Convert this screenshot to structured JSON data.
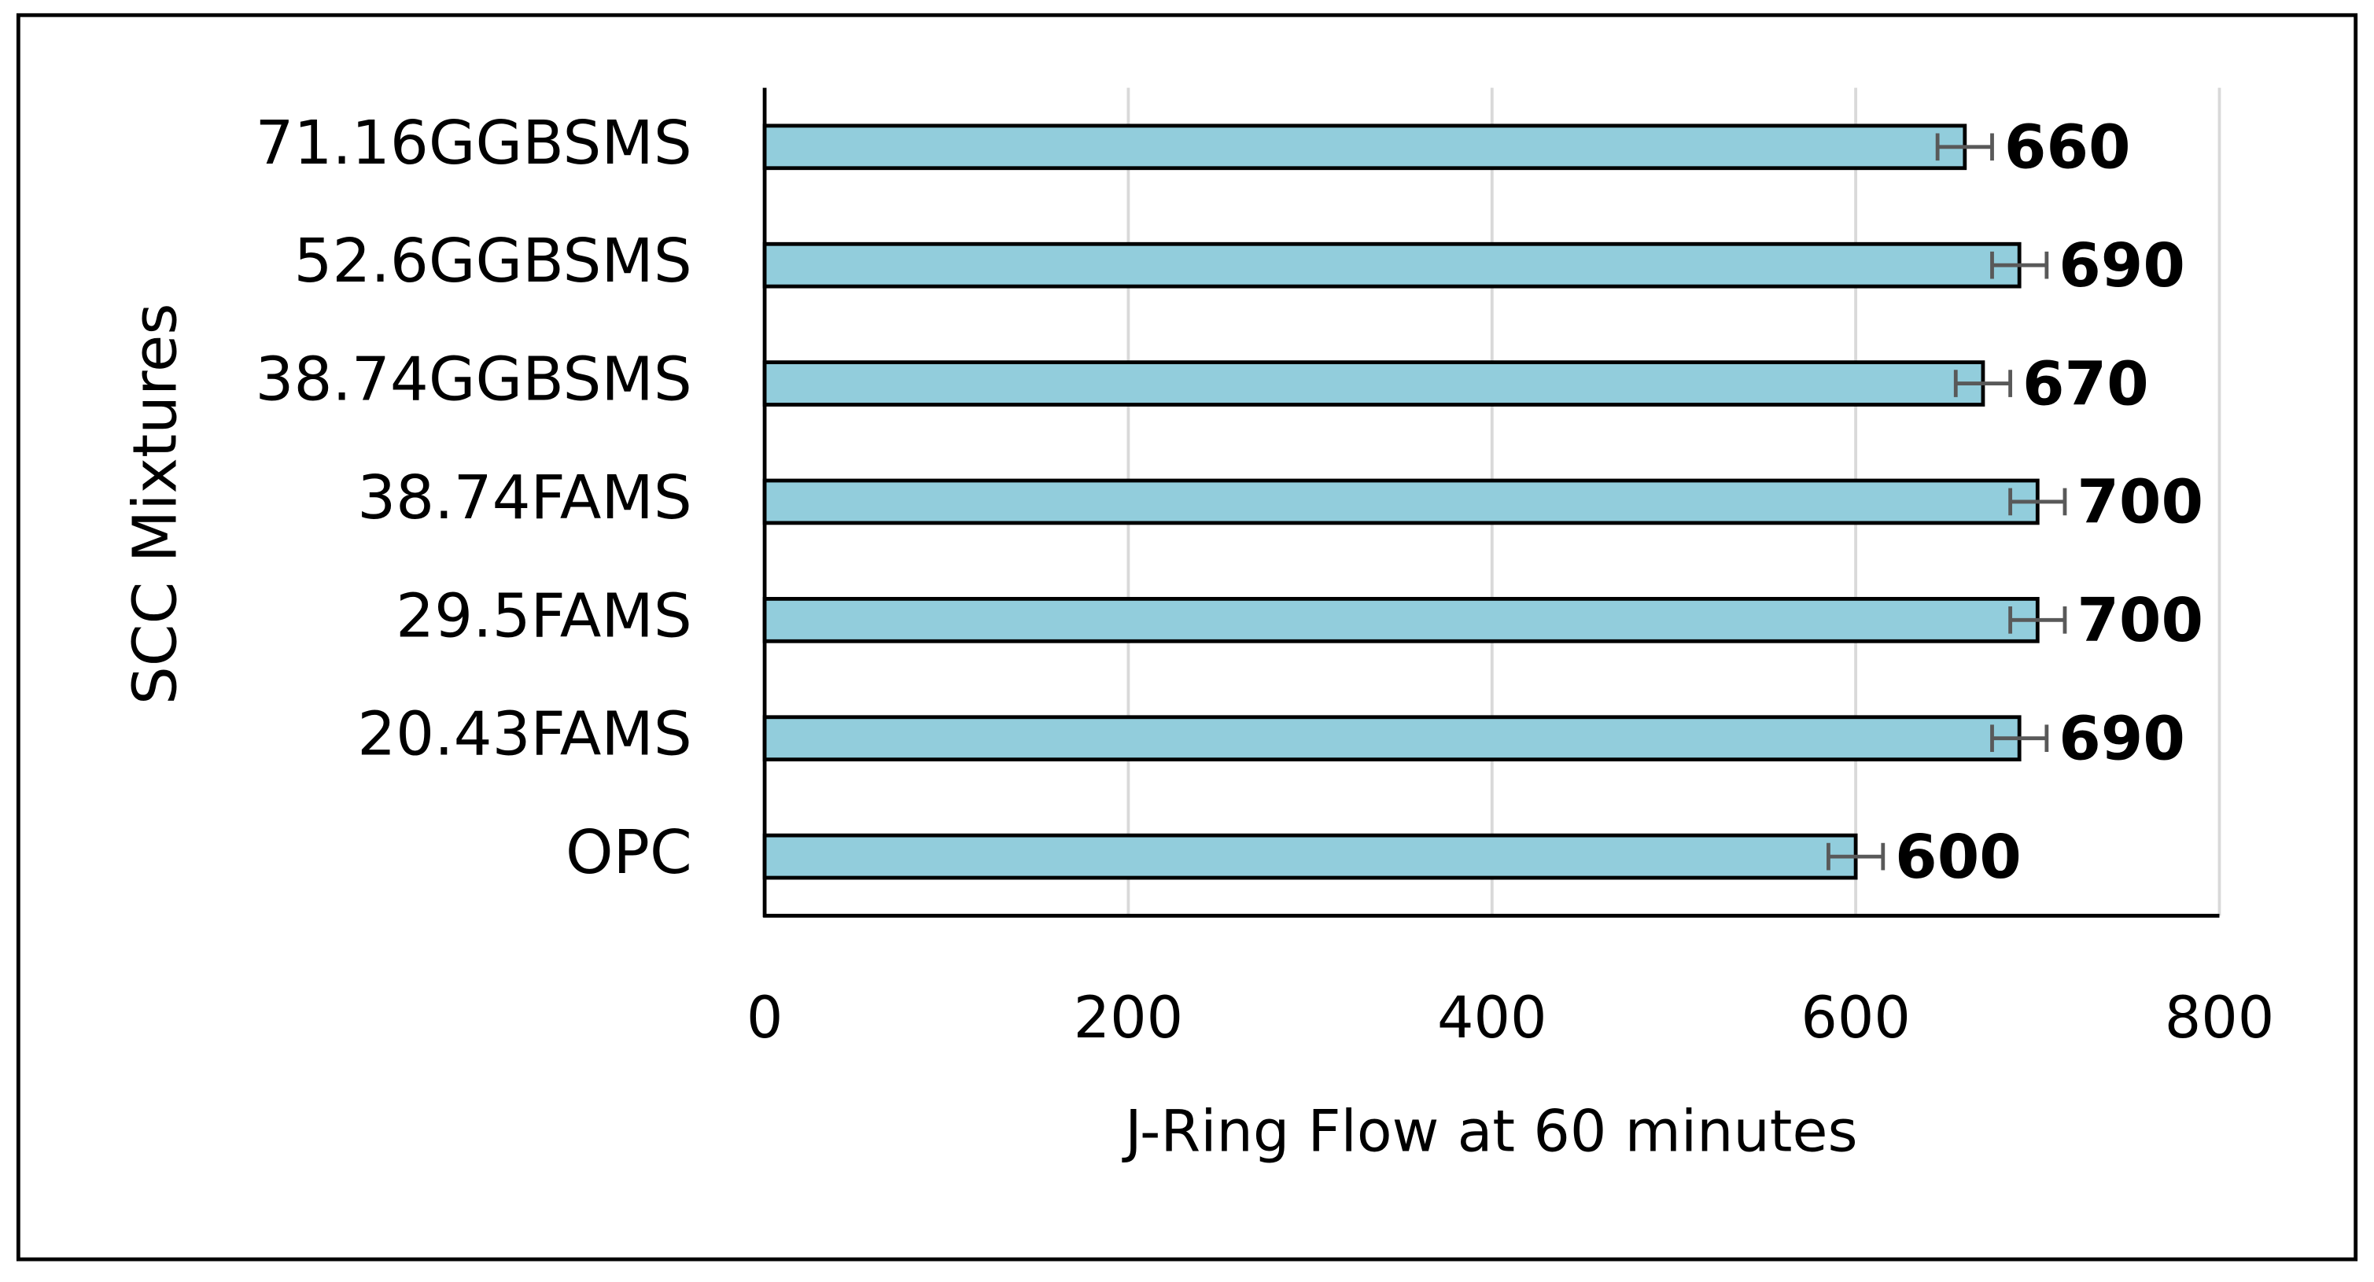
{
  "chart_data": {
    "type": "hbar",
    "categories": [
      "OPC",
      "20.43FAMS",
      "29.5FAMS",
      "38.74FAMS",
      "38.74GGBSMS",
      "52.6GGBSMS",
      "71.16GGBSMS"
    ],
    "values": [
      600,
      690,
      700,
      700,
      670,
      690,
      660
    ],
    "errors": [
      15,
      15,
      15,
      15,
      15,
      15,
      15
    ],
    "color": "#92cddc",
    "xlim": [
      0,
      800
    ],
    "xticks": [
      0,
      200,
      400,
      600,
      800
    ],
    "grid": true,
    "xlabel": "J-Ring Flow at 60 minutes",
    "ylabel": "SCC Mixtures"
  }
}
